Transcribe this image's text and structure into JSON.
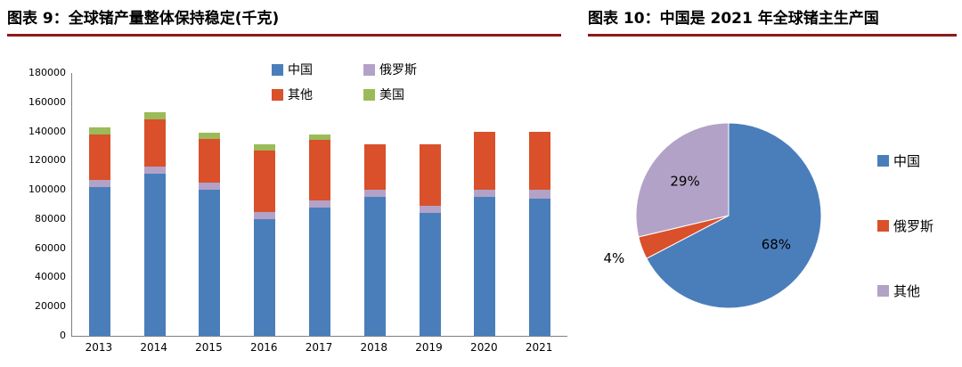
{
  "theme": {
    "rule_color": "#8b1a1a",
    "background": "#ffffff",
    "text_color": "#000000"
  },
  "figure9": {
    "title": "图表 9：全球锗产量整体保持稳定(千克)"
  },
  "figure10": {
    "title": "图表 10：中国是 2021 年全球锗主生产国"
  },
  "chart_data": [
    {
      "type": "bar",
      "stacked": true,
      "title": "全球锗产量整体保持稳定(千克)",
      "unit": "千克",
      "categories": [
        "2013",
        "2014",
        "2015",
        "2016",
        "2017",
        "2018",
        "2019",
        "2020",
        "2021"
      ],
      "series": [
        {
          "name": "中国",
          "color": "#4a7ebb",
          "values": [
            102000,
            111000,
            100000,
            80000,
            88000,
            95000,
            84000,
            95000,
            94000
          ]
        },
        {
          "name": "俄罗斯",
          "color": "#b3a2c7",
          "values": [
            5000,
            5000,
            5000,
            5000,
            5000,
            5000,
            5000,
            5000,
            6000
          ]
        },
        {
          "name": "其他",
          "color": "#d9502a",
          "values": [
            31000,
            32000,
            30000,
            42000,
            41000,
            31000,
            42000,
            40000,
            40000
          ]
        },
        {
          "name": "美国",
          "color": "#9bbb59",
          "values": [
            5000,
            5000,
            4000,
            4000,
            4000,
            0,
            0,
            0,
            0
          ]
        }
      ],
      "ylim": [
        0,
        180000
      ],
      "ytick_step": 20000,
      "grid": false,
      "legend_position": "top",
      "legend_order": [
        "中国",
        "俄罗斯",
        "其他",
        "美国"
      ]
    },
    {
      "type": "pie",
      "title": "中国是 2021 年全球锗主生产国",
      "slices": [
        {
          "label": "中国",
          "pct": 68,
          "color": "#4a7ebb"
        },
        {
          "label": "俄罗斯",
          "pct": 4,
          "color": "#d9502a"
        },
        {
          "label": "其他",
          "pct": 29,
          "color": "#b3a2c7"
        }
      ],
      "legend_position": "right"
    }
  ]
}
